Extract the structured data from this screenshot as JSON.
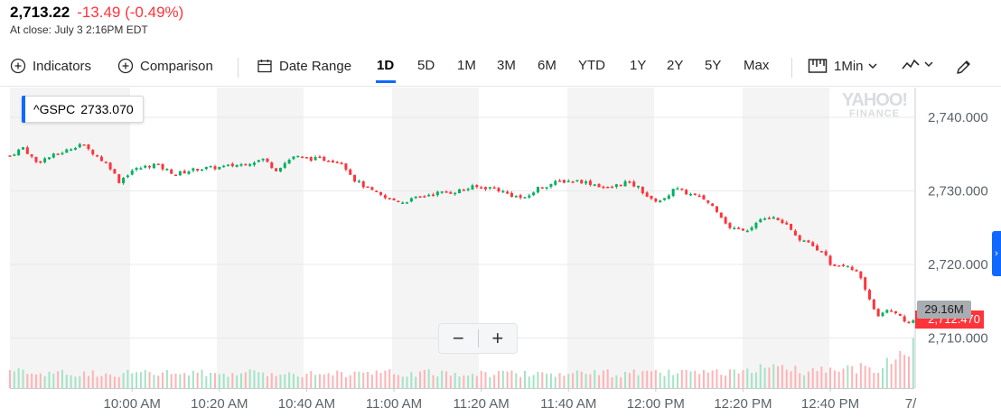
{
  "quote": {
    "price": "2,713.22",
    "change": "-13.49 (-0.49%)",
    "closing_text": "At close: July 3 2:16PM EDT"
  },
  "toolbar": {
    "indicators_label": "Indicators",
    "comparison_label": "Comparison",
    "date_range_label": "Date Range",
    "ranges": [
      "1D",
      "5D",
      "1M",
      "3M",
      "6M",
      "YTD",
      "1Y",
      "2Y",
      "5Y",
      "Max"
    ],
    "active_range": "1D",
    "interval_label": "1Min"
  },
  "symbol": {
    "ticker": "^GSPC",
    "value": "2733.070"
  },
  "watermark": {
    "line1": "YAHOO!",
    "line2": "FINANCE"
  },
  "zoom": {
    "out_label": "−",
    "in_label": "+"
  },
  "volume_tag": "29.16M",
  "price_tag": "2,712.470",
  "colors": {
    "up": "#00b061",
    "down": "#ff333a",
    "accent": "#0f69ff",
    "volume": "#a4e3c6"
  },
  "icons": {
    "indicators": "plus-circle-icon",
    "comparison": "plus-circle-icon",
    "date_range": "calendar-icon",
    "interval": "candlestick-icon",
    "chart_type": "line-chart-icon",
    "draw": "pencil-icon",
    "side_tab": "chevron-right-icon"
  },
  "chart_data": {
    "type": "candlestick",
    "symbol": "^GSPC",
    "interval": "1 minute",
    "y_axis": {
      "ticks": [
        "2,740.000",
        "2,730.000",
        "2,720.000",
        "2,710.000"
      ],
      "range": [
        2705,
        2743
      ],
      "side": "right"
    },
    "x_axis": {
      "ticks": [
        "10:00 AM",
        "10:20 AM",
        "10:40 AM",
        "11:00 AM",
        "11:20 AM",
        "11:40 AM",
        "12:00 PM",
        "12:20 PM",
        "12:40 PM",
        "7/"
      ],
      "range": [
        "9:32 AM",
        "1:00 PM"
      ]
    },
    "close_path": [
      {
        "t": "9:32",
        "y": 2734.8
      },
      {
        "t": "9:35",
        "y": 2735.9
      },
      {
        "t": "9:38",
        "y": 2733.9
      },
      {
        "t": "9:41",
        "y": 2734.6
      },
      {
        "t": "9:45",
        "y": 2735.5
      },
      {
        "t": "9:48",
        "y": 2736.4
      },
      {
        "t": "9:51",
        "y": 2735.2
      },
      {
        "t": "9:55",
        "y": 2733.2
      },
      {
        "t": "9:57",
        "y": 2731.3
      },
      {
        "t": "10:00",
        "y": 2732.8
      },
      {
        "t": "10:05",
        "y": 2733.6
      },
      {
        "t": "10:10",
        "y": 2732.3
      },
      {
        "t": "10:15",
        "y": 2733.0
      },
      {
        "t": "10:20",
        "y": 2733.2
      },
      {
        "t": "10:25",
        "y": 2733.6
      },
      {
        "t": "10:30",
        "y": 2734.3
      },
      {
        "t": "10:33",
        "y": 2732.9
      },
      {
        "t": "10:37",
        "y": 2734.7
      },
      {
        "t": "10:40",
        "y": 2734.4
      },
      {
        "t": "10:44",
        "y": 2734.3
      },
      {
        "t": "10:48",
        "y": 2734.0
      },
      {
        "t": "10:51",
        "y": 2731.5
      },
      {
        "t": "10:54",
        "y": 2730.3
      },
      {
        "t": "10:58",
        "y": 2729.0
      },
      {
        "t": "11:02",
        "y": 2728.5
      },
      {
        "t": "11:05",
        "y": 2729.0
      },
      {
        "t": "11:09",
        "y": 2729.7
      },
      {
        "t": "11:13",
        "y": 2729.8
      },
      {
        "t": "11:18",
        "y": 2730.5
      },
      {
        "t": "11:23",
        "y": 2730.4
      },
      {
        "t": "11:26",
        "y": 2729.6
      },
      {
        "t": "11:30",
        "y": 2728.9
      },
      {
        "t": "11:33",
        "y": 2730.4
      },
      {
        "t": "11:38",
        "y": 2731.3
      },
      {
        "t": "11:42",
        "y": 2731.4
      },
      {
        "t": "11:46",
        "y": 2730.9
      },
      {
        "t": "11:49",
        "y": 2730.3
      },
      {
        "t": "11:53",
        "y": 2731.2
      },
      {
        "t": "11:56",
        "y": 2730.5
      },
      {
        "t": "11:59",
        "y": 2728.7
      },
      {
        "t": "12:02",
        "y": 2728.8
      },
      {
        "t": "12:04",
        "y": 2730.4
      },
      {
        "t": "12:08",
        "y": 2729.5
      },
      {
        "t": "12:11",
        "y": 2728.9
      },
      {
        "t": "12:14",
        "y": 2727.4
      },
      {
        "t": "12:17",
        "y": 2724.9
      },
      {
        "t": "12:21",
        "y": 2724.8
      },
      {
        "t": "12:24",
        "y": 2726.0
      },
      {
        "t": "12:27",
        "y": 2726.3
      },
      {
        "t": "12:30",
        "y": 2725.2
      },
      {
        "t": "12:33",
        "y": 2723.4
      },
      {
        "t": "12:36",
        "y": 2722.4
      },
      {
        "t": "12:38",
        "y": 2721.9
      },
      {
        "t": "12:40",
        "y": 2720.1
      },
      {
        "t": "12:44",
        "y": 2719.9
      },
      {
        "t": "12:47",
        "y": 2718.4
      },
      {
        "t": "12:49",
        "y": 2715.3
      },
      {
        "t": "12:51",
        "y": 2713.0
      },
      {
        "t": "12:53",
        "y": 2713.9
      },
      {
        "t": "12:55",
        "y": 2713.6
      },
      {
        "t": "12:57",
        "y": 2712.1
      },
      {
        "t": "12:59",
        "y": 2712.5
      }
    ],
    "last_price": 2712.47,
    "last_volume": "29.16M"
  }
}
